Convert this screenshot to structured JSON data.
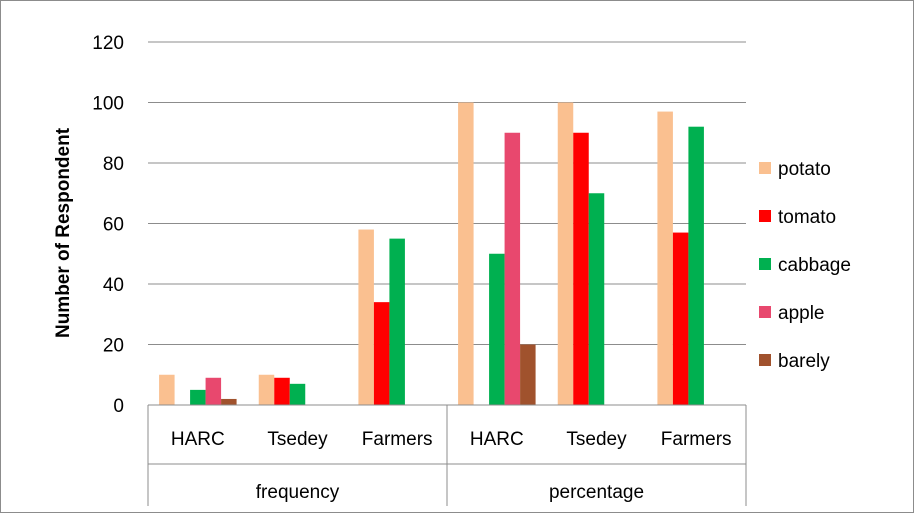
{
  "chart_data": {
    "type": "bar",
    "title": "",
    "xlabel": "",
    "ylabel": "Number of Respondent",
    "ylim": [
      0,
      120
    ],
    "yticks": [
      0,
      20,
      40,
      60,
      80,
      100,
      120
    ],
    "grid": true,
    "legend_position": "right",
    "groups": [
      {
        "label": "frequency",
        "categories": [
          "HARC",
          "Tsedey",
          "Farmers"
        ]
      },
      {
        "label": "percentage",
        "categories": [
          "HARC",
          "Tsedey",
          "Farmers"
        ]
      }
    ],
    "series": [
      {
        "name": "potato",
        "color": "#FAC090",
        "values": [
          10,
          10,
          58,
          100,
          100,
          97
        ]
      },
      {
        "name": "tomato",
        "color": "#FF0000",
        "values": [
          0,
          9,
          34,
          0,
          90,
          57
        ]
      },
      {
        "name": "cabbage",
        "color": "#00B050",
        "values": [
          5,
          7,
          55,
          50,
          70,
          92
        ]
      },
      {
        "name": "apple",
        "color": "#E8486E",
        "values": [
          9,
          0,
          0,
          90,
          0,
          0
        ]
      },
      {
        "name": "barely",
        "color": "#A0522D",
        "values": [
          2,
          0,
          0,
          20,
          0,
          0
        ]
      }
    ]
  }
}
